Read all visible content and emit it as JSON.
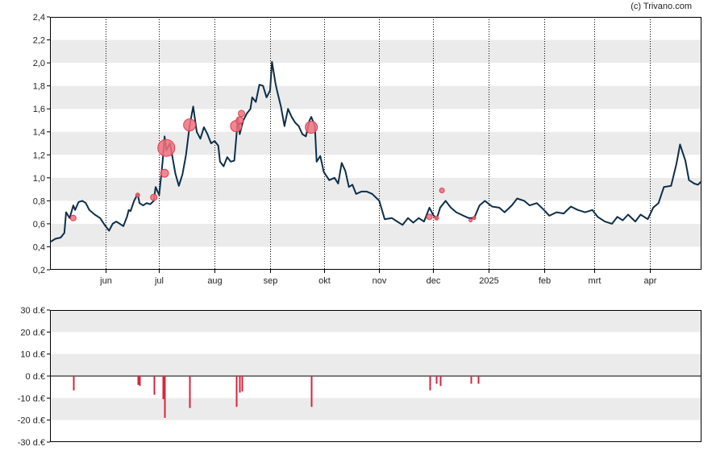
{
  "copyright": "(c) Trivano.com",
  "colors": {
    "line": "#0d2f4a",
    "bubble_fill": "#f0707c",
    "bubble_stroke": "#d94050",
    "bar": "#d7263d",
    "band": "#ebebeb",
    "axis": "#000000"
  },
  "chart_data": [
    {
      "type": "line",
      "title": "",
      "ylim": [
        0.2,
        2.4
      ],
      "y_ticks": [
        "0,2",
        "0,4",
        "0,6",
        "0,8",
        "1,0",
        "1,2",
        "1,4",
        "1,6",
        "1,8",
        "2,0",
        "2,2",
        "2,4"
      ],
      "x_range": [
        "2024-05-01",
        "2025-04-30"
      ],
      "x_ticks": [
        {
          "label": "jun",
          "date": "2024-06-01"
        },
        {
          "label": "jul",
          "date": "2024-07-01"
        },
        {
          "label": "aug",
          "date": "2024-08-01"
        },
        {
          "label": "sep",
          "date": "2024-09-01"
        },
        {
          "label": "okt",
          "date": "2024-10-01"
        },
        {
          "label": "nov",
          "date": "2024-11-01"
        },
        {
          "label": "dec",
          "date": "2024-12-01"
        },
        {
          "label": "2025",
          "date": "2025-01-01"
        },
        {
          "label": "feb",
          "date": "2025-02-01"
        },
        {
          "label": "mrt",
          "date": "2025-03-01"
        },
        {
          "label": "apr",
          "date": "2025-04-01"
        }
      ],
      "grid": "alternating horizontal bands, dotted vertical month lines",
      "series": [
        {
          "points": [
            [
              "2024-05-01",
              0.44
            ],
            [
              "2024-05-04",
              0.47
            ],
            [
              "2024-05-07",
              0.48
            ],
            [
              "2024-05-09",
              0.52
            ],
            [
              "2024-05-10",
              0.7
            ],
            [
              "2024-05-12",
              0.65
            ],
            [
              "2024-05-14",
              0.76
            ],
            [
              "2024-05-15",
              0.72
            ],
            [
              "2024-05-17",
              0.79
            ],
            [
              "2024-05-19",
              0.8
            ],
            [
              "2024-05-21",
              0.78
            ],
            [
              "2024-05-23",
              0.72
            ],
            [
              "2024-05-26",
              0.68
            ],
            [
              "2024-05-29",
              0.65
            ],
            [
              "2024-06-01",
              0.58
            ],
            [
              "2024-06-03",
              0.54
            ],
            [
              "2024-06-05",
              0.6
            ],
            [
              "2024-06-07",
              0.62
            ],
            [
              "2024-06-09",
              0.6
            ],
            [
              "2024-06-11",
              0.58
            ],
            [
              "2024-06-13",
              0.66
            ],
            [
              "2024-06-14",
              0.72
            ],
            [
              "2024-06-15",
              0.71
            ],
            [
              "2024-06-17",
              0.8
            ],
            [
              "2024-06-19",
              0.86
            ],
            [
              "2024-06-20",
              0.78
            ],
            [
              "2024-06-22",
              0.76
            ],
            [
              "2024-06-24",
              0.78
            ],
            [
              "2024-06-26",
              0.77
            ],
            [
              "2024-06-28",
              0.8
            ],
            [
              "2024-06-29",
              0.92
            ],
            [
              "2024-07-01",
              0.85
            ],
            [
              "2024-07-02",
              1.0
            ],
            [
              "2024-07-03",
              1.15
            ],
            [
              "2024-07-04",
              1.36
            ],
            [
              "2024-07-05",
              1.24
            ],
            [
              "2024-07-07",
              1.3
            ],
            [
              "2024-07-08",
              1.22
            ],
            [
              "2024-07-10",
              1.04
            ],
            [
              "2024-07-12",
              0.93
            ],
            [
              "2024-07-14",
              1.03
            ],
            [
              "2024-07-16",
              1.2
            ],
            [
              "2024-07-18",
              1.45
            ],
            [
              "2024-07-20",
              1.62
            ],
            [
              "2024-07-22",
              1.4
            ],
            [
              "2024-07-24",
              1.34
            ],
            [
              "2024-07-26",
              1.44
            ],
            [
              "2024-07-28",
              1.38
            ],
            [
              "2024-07-30",
              1.3
            ],
            [
              "2024-08-01",
              1.32
            ],
            [
              "2024-08-03",
              1.28
            ],
            [
              "2024-08-04",
              1.14
            ],
            [
              "2024-08-06",
              1.1
            ],
            [
              "2024-08-08",
              1.18
            ],
            [
              "2024-08-10",
              1.14
            ],
            [
              "2024-08-12",
              1.15
            ],
            [
              "2024-08-14",
              1.52
            ],
            [
              "2024-08-15",
              1.38
            ],
            [
              "2024-08-17",
              1.5
            ],
            [
              "2024-08-19",
              1.56
            ],
            [
              "2024-08-21",
              1.6
            ],
            [
              "2024-08-22",
              1.7
            ],
            [
              "2024-08-24",
              1.66
            ],
            [
              "2024-08-26",
              1.81
            ],
            [
              "2024-08-28",
              1.8
            ],
            [
              "2024-08-30",
              1.7
            ],
            [
              "2024-09-01",
              1.76
            ],
            [
              "2024-09-02",
              2.01
            ],
            [
              "2024-09-04",
              1.82
            ],
            [
              "2024-09-05",
              1.75
            ],
            [
              "2024-09-07",
              1.62
            ],
            [
              "2024-09-09",
              1.45
            ],
            [
              "2024-09-11",
              1.6
            ],
            [
              "2024-09-13",
              1.53
            ],
            [
              "2024-09-15",
              1.48
            ],
            [
              "2024-09-17",
              1.45
            ],
            [
              "2024-09-19",
              1.38
            ],
            [
              "2024-09-21",
              1.36
            ],
            [
              "2024-09-23",
              1.5
            ],
            [
              "2024-09-24",
              1.53
            ],
            [
              "2024-09-26",
              1.45
            ],
            [
              "2024-09-27",
              1.14
            ],
            [
              "2024-09-29",
              1.19
            ],
            [
              "2024-10-01",
              1.05
            ],
            [
              "2024-10-04",
              0.98
            ],
            [
              "2024-10-07",
              1.0
            ],
            [
              "2024-10-09",
              0.95
            ],
            [
              "2024-10-11",
              1.13
            ],
            [
              "2024-10-13",
              1.06
            ],
            [
              "2024-10-15",
              0.92
            ],
            [
              "2024-10-17",
              0.94
            ],
            [
              "2024-10-19",
              0.86
            ],
            [
              "2024-10-22",
              0.88
            ],
            [
              "2024-10-25",
              0.88
            ],
            [
              "2024-10-28",
              0.86
            ],
            [
              "2024-11-01",
              0.8
            ],
            [
              "2024-11-04",
              0.64
            ],
            [
              "2024-11-08",
              0.65
            ],
            [
              "2024-11-11",
              0.62
            ],
            [
              "2024-11-14",
              0.59
            ],
            [
              "2024-11-17",
              0.65
            ],
            [
              "2024-11-20",
              0.61
            ],
            [
              "2024-11-23",
              0.65
            ],
            [
              "2024-11-26",
              0.62
            ],
            [
              "2024-11-29",
              0.74
            ],
            [
              "2024-12-01",
              0.68
            ],
            [
              "2024-12-03",
              0.64
            ],
            [
              "2024-12-05",
              0.74
            ],
            [
              "2024-12-08",
              0.8
            ],
            [
              "2024-12-11",
              0.74
            ],
            [
              "2024-12-14",
              0.7
            ],
            [
              "2024-12-18",
              0.67
            ],
            [
              "2024-12-21",
              0.65
            ],
            [
              "2024-12-24",
              0.65
            ],
            [
              "2024-12-27",
              0.76
            ],
            [
              "2024-12-30",
              0.8
            ],
            [
              "2025-01-03",
              0.75
            ],
            [
              "2025-01-07",
              0.74
            ],
            [
              "2025-01-10",
              0.7
            ],
            [
              "2025-01-14",
              0.76
            ],
            [
              "2025-01-17",
              0.82
            ],
            [
              "2025-01-21",
              0.8
            ],
            [
              "2025-01-24",
              0.76
            ],
            [
              "2025-01-28",
              0.78
            ],
            [
              "2025-02-01",
              0.72
            ],
            [
              "2025-02-04",
              0.67
            ],
            [
              "2025-02-08",
              0.7
            ],
            [
              "2025-02-12",
              0.69
            ],
            [
              "2025-02-16",
              0.75
            ],
            [
              "2025-02-20",
              0.72
            ],
            [
              "2025-02-24",
              0.7
            ],
            [
              "2025-02-28",
              0.72
            ],
            [
              "2025-03-03",
              0.66
            ],
            [
              "2025-03-07",
              0.62
            ],
            [
              "2025-03-11",
              0.6
            ],
            [
              "2025-03-14",
              0.66
            ],
            [
              "2025-03-17",
              0.63
            ],
            [
              "2025-03-20",
              0.68
            ],
            [
              "2025-03-24",
              0.62
            ],
            [
              "2025-03-27",
              0.68
            ],
            [
              "2025-03-31",
              0.64
            ],
            [
              "2025-04-03",
              0.74
            ],
            [
              "2025-04-06",
              0.78
            ],
            [
              "2025-04-09",
              0.92
            ],
            [
              "2025-04-13",
              0.93
            ],
            [
              "2025-04-16",
              1.12
            ],
            [
              "2025-04-18",
              1.29
            ],
            [
              "2025-04-21",
              1.15
            ],
            [
              "2025-04-23",
              0.98
            ],
            [
              "2025-04-26",
              0.95
            ],
            [
              "2025-04-28",
              0.94
            ],
            [
              "2025-04-30",
              0.97
            ]
          ]
        }
      ],
      "markers": [
        {
          "date": "2024-05-14",
          "y": 0.65,
          "size": 7
        },
        {
          "date": "2024-06-19",
          "y": 0.85,
          "size": 5
        },
        {
          "date": "2024-06-28",
          "y": 0.83,
          "size": 8
        },
        {
          "date": "2024-07-04",
          "y": 1.04,
          "size": 10
        },
        {
          "date": "2024-07-05",
          "y": 1.26,
          "size": 21
        },
        {
          "date": "2024-07-18",
          "y": 1.46,
          "size": 15
        },
        {
          "date": "2024-08-13",
          "y": 1.45,
          "size": 14
        },
        {
          "date": "2024-08-15",
          "y": 1.5,
          "size": 9
        },
        {
          "date": "2024-08-16",
          "y": 1.56,
          "size": 8
        },
        {
          "date": "2024-09-24",
          "y": 1.44,
          "size": 15
        },
        {
          "date": "2024-11-29",
          "y": 0.66,
          "size": 7
        },
        {
          "date": "2024-12-03",
          "y": 0.65,
          "size": 5
        },
        {
          "date": "2024-12-06",
          "y": 0.89,
          "size": 6
        },
        {
          "date": "2024-12-22",
          "y": 0.63,
          "size": 4
        },
        {
          "date": "2024-12-24",
          "y": 0.65,
          "size": 4
        }
      ]
    },
    {
      "type": "bar",
      "ylim": [
        -30,
        30
      ],
      "y_ticks": [
        "30 d.€",
        "20 d.€",
        "10 d.€",
        "0 d.€",
        "-10 d.€",
        "-20 d.€",
        "-30 d.€"
      ],
      "grid": "alternating horizontal bands",
      "bars": [
        [
          "2024-05-14",
          -6.5
        ],
        [
          "2024-06-19",
          -4.0
        ],
        [
          "2024-06-20",
          -4.5
        ],
        [
          "2024-06-28",
          -8.5
        ],
        [
          "2024-07-03",
          -10.5
        ],
        [
          "2024-07-04",
          -19.0
        ],
        [
          "2024-07-18",
          -14.5
        ],
        [
          "2024-08-13",
          -14.0
        ],
        [
          "2024-08-15",
          -7.5
        ],
        [
          "2024-08-16",
          -7.0
        ],
        [
          "2024-09-24",
          -14.0
        ],
        [
          "2024-11-29",
          -6.5
        ],
        [
          "2024-12-03",
          -3.5
        ],
        [
          "2024-12-05",
          -4.5
        ],
        [
          "2024-12-22",
          -3.5
        ],
        [
          "2024-12-26",
          -3.5
        ]
      ]
    }
  ]
}
